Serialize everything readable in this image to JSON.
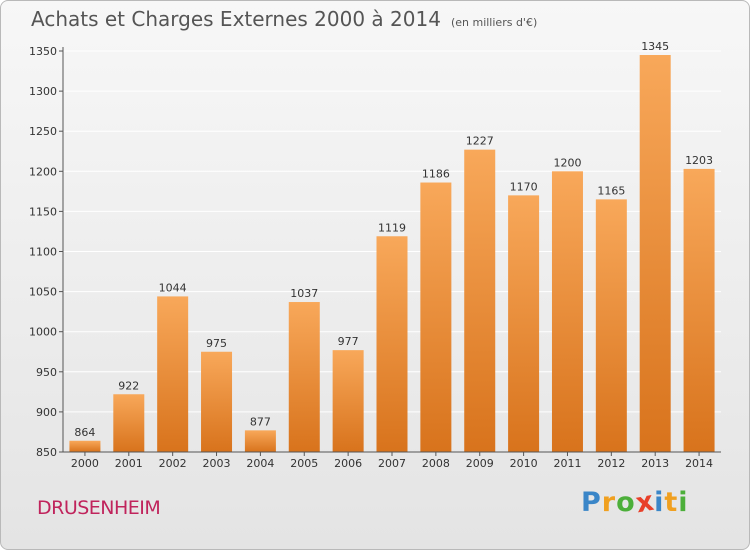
{
  "header": {
    "title": "Achats et Charges Externes 2000 à 2014",
    "subtitle": "(en milliers d'€)"
  },
  "footer": {
    "city": "DRUSENHEIM",
    "logo_letters": [
      "P",
      "r",
      "o",
      "x",
      "i",
      "t",
      "i"
    ],
    "logo_colors": [
      "#3a86c8",
      "#f0a020",
      "#4caf3a",
      "#e8402a",
      "#3a86c8",
      "#f0a020",
      "#4caf3a"
    ]
  },
  "colors": {
    "bar_top": "#f8a85a",
    "bar_bottom": "#d8731c",
    "grid": "#ffffff",
    "axis": "#555555"
  },
  "chart_data": {
    "type": "bar",
    "title": "Achats et Charges Externes 2000 à 2014",
    "subtitle": "(en milliers d'€)",
    "xlabel": "",
    "ylabel": "",
    "categories": [
      "2000",
      "2001",
      "2002",
      "2003",
      "2004",
      "2005",
      "2006",
      "2007",
      "2008",
      "2009",
      "2010",
      "2011",
      "2012",
      "2013",
      "2014"
    ],
    "values": [
      864,
      922,
      1044,
      975,
      877,
      1037,
      977,
      1119,
      1186,
      1227,
      1170,
      1200,
      1165,
      1345,
      1203
    ],
    "ylim": [
      850,
      1350
    ],
    "yticks": [
      850,
      900,
      950,
      1000,
      1050,
      1100,
      1150,
      1200,
      1250,
      1300,
      1350
    ],
    "grid": true,
    "legend": "none"
  }
}
